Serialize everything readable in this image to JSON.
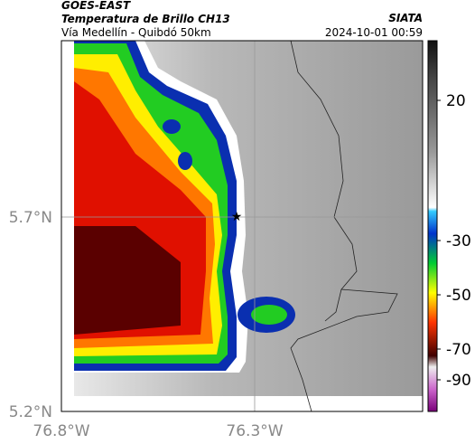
{
  "header": {
    "satellite": "GOES-EAST",
    "product": "Temperatura de Brillo CH13",
    "route": "Vía Medellín - Quibdó 50km",
    "source": "SIATA",
    "datetime": "2024-10-01 00:59"
  },
  "map": {
    "lat_labels": [
      "5.7°N",
      "5.2°N"
    ],
    "lon_labels": [
      "76.8°W",
      "76.3°W"
    ]
  },
  "colorbar": {
    "ticks": [
      20,
      -30,
      -50,
      -70,
      -90
    ]
  }
}
